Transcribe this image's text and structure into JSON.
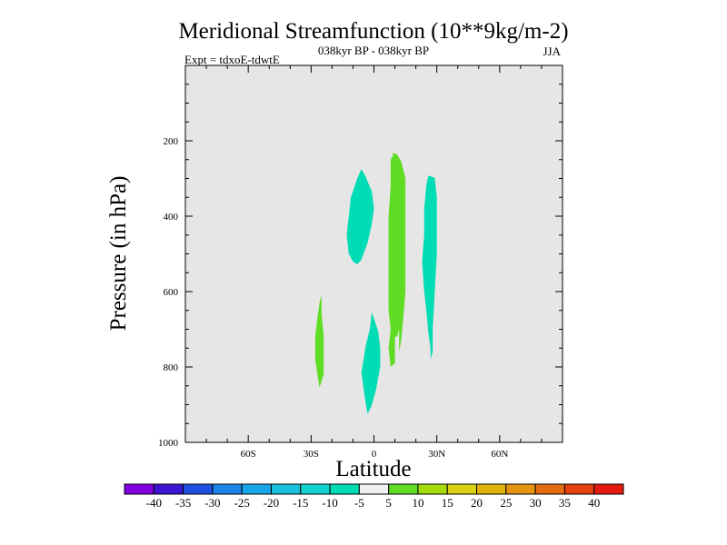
{
  "chart_data": {
    "type": "contour",
    "title": "Meridional Streamfunction (10**9kg/m-2)",
    "subtitle": "038kyr BP - 038kyr BP",
    "expt_label": "Expt = tdxoE-tdwtE",
    "season": "JJA",
    "xlabel": "Latitude",
    "ylabel": "Pressure (in hPa)",
    "xlim": [
      -90,
      90
    ],
    "ylim": [
      1000,
      0
    ],
    "x_ticks": [
      {
        "value": -60,
        "label": "60S"
      },
      {
        "value": -30,
        "label": "30S"
      },
      {
        "value": 0,
        "label": "0"
      },
      {
        "value": 30,
        "label": "30N"
      },
      {
        "value": 60,
        "label": "60N"
      }
    ],
    "y_ticks": [
      {
        "value": 200,
        "label": "200"
      },
      {
        "value": 400,
        "label": "400"
      },
      {
        "value": 600,
        "label": "600"
      },
      {
        "value": 800,
        "label": "800"
      },
      {
        "value": 1000,
        "label": "1000"
      }
    ],
    "background_color": "#e6e6e6",
    "regions": [
      {
        "name": "negative-cell-upper",
        "value_range": [
          -10,
          -5
        ],
        "color": "#00dcb4",
        "points": [
          [
            -12,
            500
          ],
          [
            -13,
            450
          ],
          [
            -12,
            400
          ],
          [
            -11,
            350
          ],
          [
            -8,
            300
          ],
          [
            -6,
            275
          ],
          [
            -4,
            295
          ],
          [
            -1,
            335
          ],
          [
            0,
            380
          ],
          [
            -1,
            420
          ],
          [
            -3,
            470
          ],
          [
            -6,
            515
          ],
          [
            -8,
            528
          ],
          [
            -10,
            520
          ]
        ]
      },
      {
        "name": "negative-cell-lower",
        "value_range": [
          -10,
          -5
        ],
        "color": "#00dcb4",
        "points": [
          [
            -6,
            815
          ],
          [
            -5,
            782
          ],
          [
            -4,
            745
          ],
          [
            -2,
            700
          ],
          [
            -1,
            655
          ],
          [
            2,
            705
          ],
          [
            3,
            750
          ],
          [
            3,
            800
          ],
          [
            1,
            860
          ],
          [
            -1,
            900
          ],
          [
            -3,
            925
          ],
          [
            -4,
            895
          ],
          [
            -5,
            855
          ]
        ]
      },
      {
        "name": "negative-cell-north",
        "value_range": [
          -10,
          -5
        ],
        "color": "#00dcb4",
        "points": [
          [
            29,
            298
          ],
          [
            26,
            292
          ],
          [
            25,
            320
          ],
          [
            24,
            380
          ],
          [
            24,
            450
          ],
          [
            23,
            520
          ],
          [
            24,
            600
          ],
          [
            25,
            650
          ],
          [
            26,
            710
          ],
          [
            27,
            750
          ],
          [
            27,
            780
          ],
          [
            28,
            760
          ],
          [
            28,
            700
          ],
          [
            29,
            600
          ],
          [
            30,
            500
          ],
          [
            30,
            420
          ],
          [
            30,
            350
          ]
        ]
      },
      {
        "name": "positive-cell-south",
        "value_range": [
          5,
          10
        ],
        "color": "#5fdc23",
        "points": [
          [
            -26,
            630
          ],
          [
            -27,
            670
          ],
          [
            -28,
            720
          ],
          [
            -28,
            780
          ],
          [
            -27,
            820
          ],
          [
            -26,
            855
          ],
          [
            -24,
            820
          ],
          [
            -24,
            780
          ],
          [
            -24,
            720
          ],
          [
            -25,
            660
          ],
          [
            -25,
            610
          ]
        ]
      },
      {
        "name": "positive-cell-equatorial",
        "value_range": [
          5,
          10
        ],
        "color": "#5fdc23",
        "points": [
          [
            8,
            250
          ],
          [
            9,
            240
          ],
          [
            9,
            232
          ],
          [
            11,
            236
          ],
          [
            13,
            255
          ],
          [
            15,
            300
          ],
          [
            15,
            400
          ],
          [
            15,
            500
          ],
          [
            15,
            600
          ],
          [
            14,
            670
          ],
          [
            13,
            730
          ],
          [
            12,
            760
          ],
          [
            12,
            700
          ],
          [
            11,
            720
          ],
          [
            10,
            720
          ],
          [
            10,
            790
          ],
          [
            8,
            800
          ],
          [
            7,
            750
          ],
          [
            8,
            700
          ],
          [
            7,
            650
          ],
          [
            7,
            600
          ],
          [
            7,
            500
          ],
          [
            7,
            400
          ],
          [
            8,
            320
          ]
        ]
      }
    ],
    "colorbar": {
      "labels": [
        "-40",
        "-35",
        "-30",
        "-25",
        "-20",
        "-15",
        "-10",
        "-5",
        "5",
        "10",
        "15",
        "20",
        "25",
        "30",
        "35",
        "40"
      ],
      "colors": [
        "#8000e0",
        "#3c16d0",
        "#2050e0",
        "#1b84e8",
        "#18a6e8",
        "#18c0dc",
        "#10d0d0",
        "#00dcb4",
        "#f0f0f0",
        "#5fdc23",
        "#a4dc0c",
        "#d8d010",
        "#e0b40c",
        "#e49410",
        "#e46c10",
        "#e44010",
        "#e41c10"
      ]
    }
  }
}
